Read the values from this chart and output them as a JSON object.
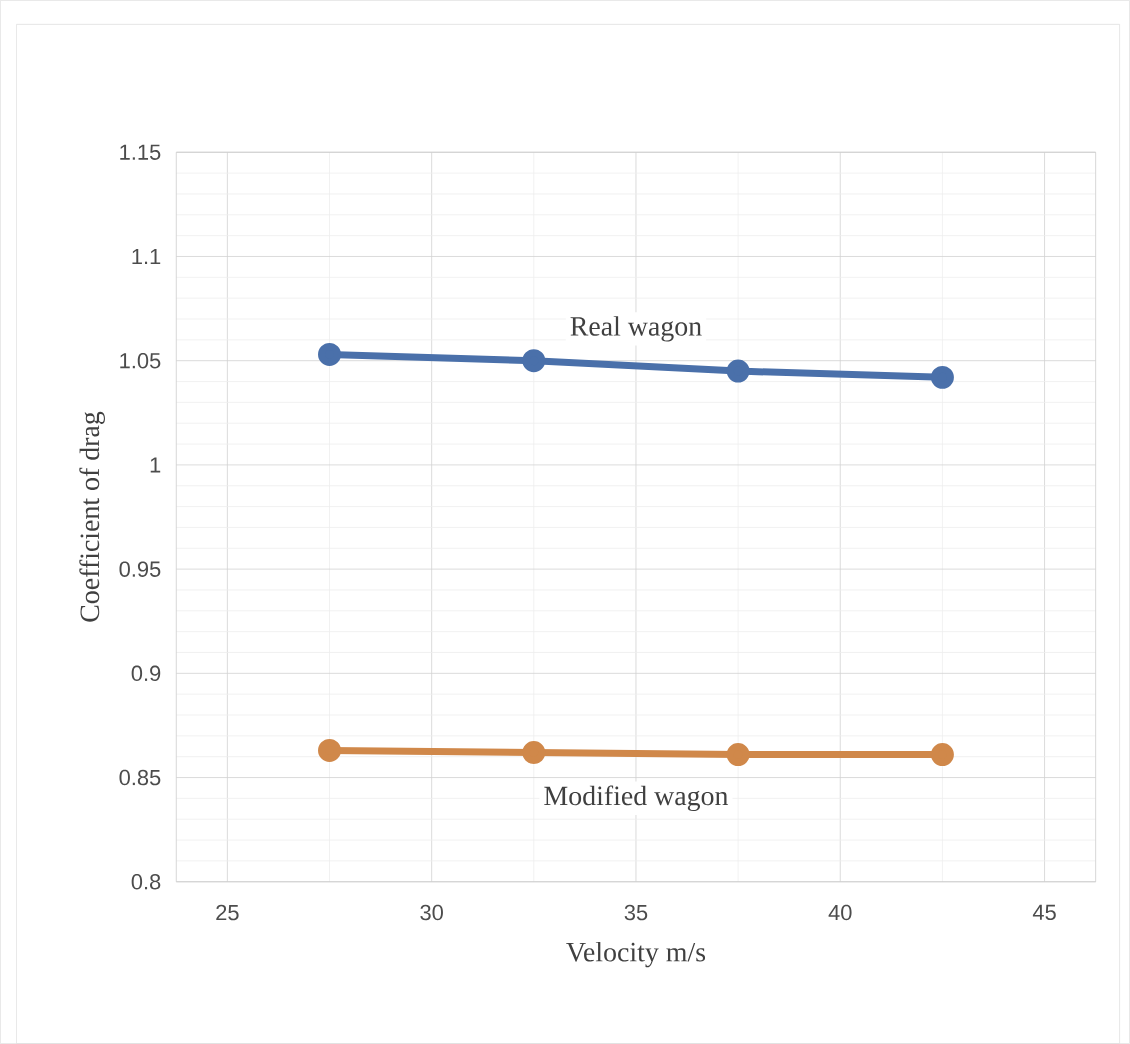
{
  "chart_data": {
    "type": "line",
    "xlabel": "Velocity m/s",
    "ylabel": "Coefficient of drag",
    "x": [
      27.5,
      32.5,
      37.5,
      42.5
    ],
    "series": [
      {
        "name": "Real wagon",
        "color": "#4a70aa",
        "values": [
          1.053,
          1.05,
          1.045,
          1.042
        ]
      },
      {
        "name": "Modified wagon",
        "color": "#d0884a",
        "values": [
          0.863,
          0.862,
          0.861,
          0.861
        ]
      }
    ],
    "xlim": [
      23.75,
      46.25
    ],
    "xticks": [
      25,
      30,
      35,
      40,
      45
    ],
    "ylim": [
      0.8,
      1.15
    ],
    "yticks": [
      0.8,
      0.85,
      0.9,
      0.95,
      1,
      1.05,
      1.1,
      1.15
    ],
    "grid": true,
    "marker": "circle",
    "line_style": "solid",
    "legend": false
  }
}
